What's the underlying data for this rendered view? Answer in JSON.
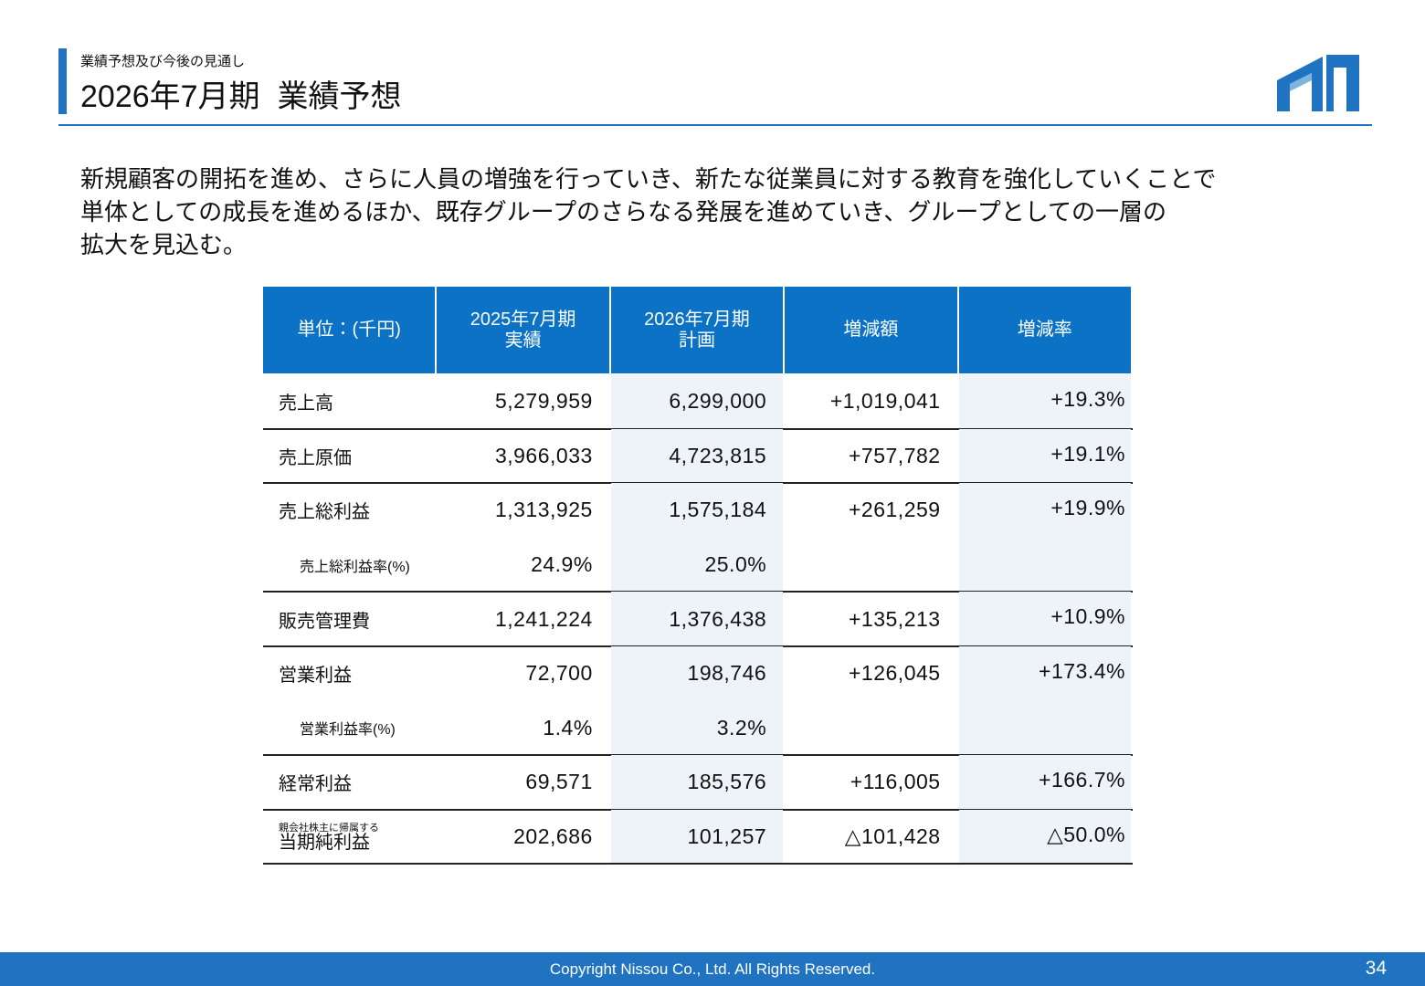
{
  "header": {
    "subtitle": "業績予想及び今後の見通し",
    "title": "2026年7月期  業績予想"
  },
  "body": {
    "lines": [
      "新規顧客の開拓を進め、さらに人員の増強を行っていき、新たな従業員に対する教育を強化していくことで",
      "単体としての成長を進めるほか、既存グループのさらなる発展を進めていき、グループとしての一層の",
      "拡大を見込む。"
    ]
  },
  "table": {
    "header": [
      [
        "単位：(千円)"
      ],
      [
        "2025年7月期",
        "実績"
      ],
      [
        "2026年7月期",
        "計画"
      ],
      [
        "増減額"
      ],
      [
        "増減率"
      ]
    ],
    "rows": [
      {
        "label": "売上高",
        "cells": [
          "5,279,959",
          "6,299,000",
          "+1,019,041",
          "+19.3%"
        ]
      },
      {
        "label": "売上原価",
        "cells": [
          "3,966,033",
          "4,723,815",
          "+757,782",
          "+19.1%"
        ]
      },
      {
        "label": "売上総利益",
        "cells": [
          "1,313,925",
          "1,575,184",
          "+261,259",
          "+19.9%"
        ]
      },
      {
        "label": "売上総利益率(%)",
        "cells": [
          "24.9%",
          "25.0%"
        ]
      },
      {
        "label": "販売管理費",
        "cells": [
          "1,241,224",
          "1,376,438",
          "+135,213",
          "+10.9%"
        ]
      },
      {
        "label": "営業利益",
        "cells": [
          "72,700",
          "198,746",
          "+126,045",
          "+173.4%"
        ]
      },
      {
        "label": "営業利益率(%)",
        "cells": [
          "1.4%",
          "3.2%"
        ]
      },
      {
        "label": "経常利益",
        "cells": [
          "69,571",
          "185,576",
          "+116,005",
          "+166.7%"
        ]
      },
      {
        "note": "親会社株主に帰属する",
        "label": "当期純利益",
        "cells": [
          "202,686",
          "101,257",
          "△101,428",
          "△50.0%"
        ]
      }
    ]
  },
  "footer": {
    "copyright": "Copyright Nissou Co., Ltd. All Rights Reserved.",
    "page": "34"
  }
}
